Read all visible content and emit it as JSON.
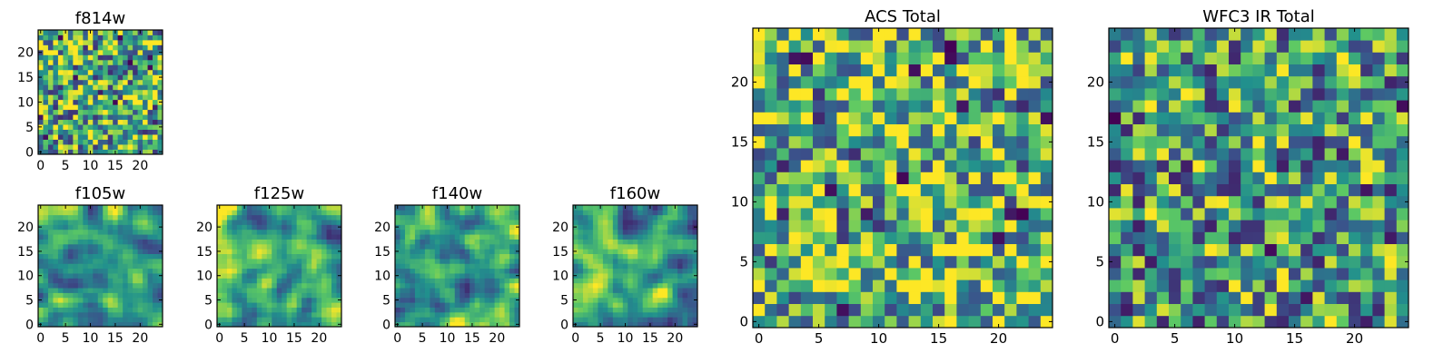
{
  "colors": {
    "background": "#ffffff",
    "frame": "#000000",
    "colormap": [
      "#440154",
      "#3b528b",
      "#21908d",
      "#5dc963",
      "#fde725"
    ],
    "palette_for_pixels": [
      "#2a788e",
      "#22a884",
      "#7ad151",
      "#a5db36",
      "#d2e21b",
      "#fde725"
    ]
  },
  "chart_data": [
    {
      "type": "heatmap",
      "title": "f814w",
      "colormap": "viridis",
      "grid_size": [
        25,
        25
      ],
      "pixel_scale": "1 px per cell",
      "texture": "fine noise, mostly green-yellow with scattered dark pixels",
      "xlim": [
        -0.5,
        24.5
      ],
      "ylim": [
        -0.5,
        24.5
      ],
      "xticks": [
        "0",
        "5",
        "10",
        "15",
        "20"
      ],
      "yticks": [
        "0",
        "5",
        "10",
        "15",
        "20"
      ],
      "seed": 11
    },
    {
      "type": "heatmap",
      "title": "f105w",
      "colormap": "viridis",
      "grid_size": [
        25,
        25
      ],
      "texture": "smooth blobs, dark spots near the centre and lower left",
      "xlim": [
        -0.5,
        24.5
      ],
      "ylim": [
        -0.5,
        24.5
      ],
      "xticks": [
        "0",
        "5",
        "10",
        "15",
        "20"
      ],
      "yticks": [
        "0",
        "5",
        "10",
        "15",
        "20"
      ],
      "seed": 23
    },
    {
      "type": "heatmap",
      "title": "f125w",
      "colormap": "viridis",
      "grid_size": [
        25,
        25
      ],
      "texture": "smooth blobs with a dark cluster near (13, 4)",
      "xlim": [
        -0.5,
        24.5
      ],
      "ylim": [
        -0.5,
        24.5
      ],
      "xticks": [
        "0",
        "5",
        "10",
        "15",
        "20"
      ],
      "yticks": [
        "0",
        "5",
        "10",
        "15",
        "20"
      ],
      "seed": 37
    },
    {
      "type": "heatmap",
      "title": "f140w",
      "colormap": "viridis",
      "grid_size": [
        25,
        25
      ],
      "texture": "smooth blobs, bright patch around (4, 14)",
      "xlim": [
        -0.5,
        24.5
      ],
      "ylim": [
        -0.5,
        24.5
      ],
      "xticks": [
        "0",
        "5",
        "10",
        "15",
        "20"
      ],
      "yticks": [
        "0",
        "5",
        "10",
        "15",
        "20"
      ],
      "seed": 41
    },
    {
      "type": "heatmap",
      "title": "f160w",
      "colormap": "viridis",
      "grid_size": [
        25,
        25
      ],
      "texture": "smooth blobs, dark spots near (9, 9) and (10, 1)",
      "xlim": [
        -0.5,
        24.5
      ],
      "ylim": [
        -0.5,
        24.5
      ],
      "xticks": [
        "0",
        "5",
        "10",
        "15",
        "20"
      ],
      "yticks": [
        "0",
        "5",
        "10",
        "15",
        "20"
      ],
      "seed": 53
    },
    {
      "type": "heatmap",
      "title": "ACS Total",
      "colormap": "viridis",
      "grid_size": [
        25,
        25
      ],
      "texture": "blocky, mostly yellow-green, bright cluster near (4, 14)",
      "xlim": [
        -0.5,
        24.5
      ],
      "ylim": [
        -0.5,
        24.5
      ],
      "xticks": [
        "0",
        "5",
        "10",
        "15",
        "20"
      ],
      "yticks": [
        "0",
        "5",
        "10",
        "15",
        "20"
      ],
      "seed": 67
    },
    {
      "type": "heatmap",
      "title": "WFC3 IR Total",
      "colormap": "viridis",
      "grid_size": [
        25,
        25
      ],
      "texture": "blocky, mostly teal-green with scattered dark pixels",
      "xlim": [
        -0.5,
        24.5
      ],
      "ylim": [
        -0.5,
        24.5
      ],
      "xticks": [
        "0",
        "5",
        "10",
        "15",
        "20"
      ],
      "yticks": [
        "0",
        "5",
        "10",
        "15",
        "20"
      ],
      "seed": 79
    }
  ]
}
